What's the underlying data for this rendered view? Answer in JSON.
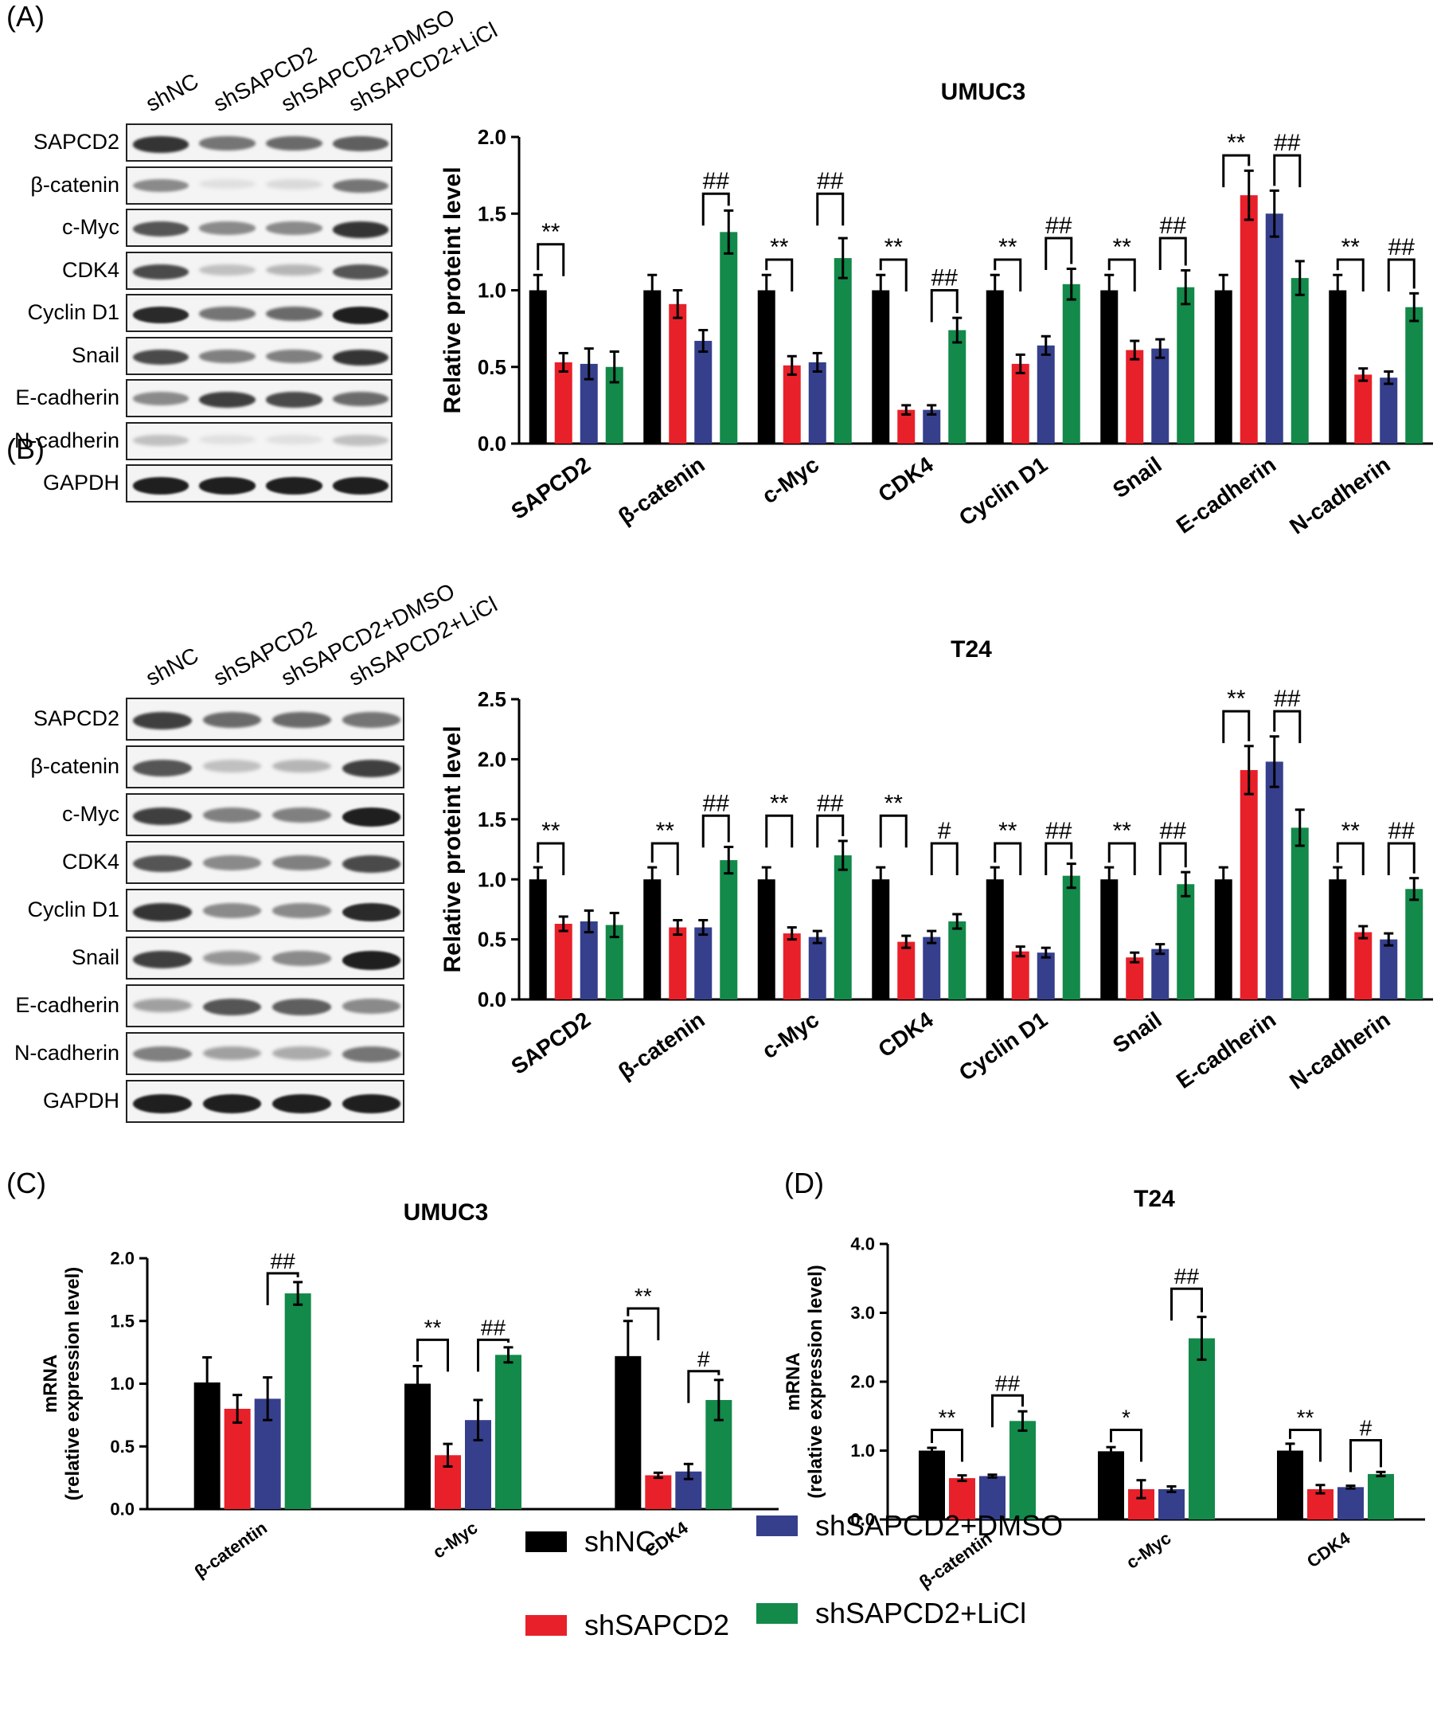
{
  "panels": {
    "A": "(A)",
    "B": "(B)",
    "C": "(C)",
    "D": "(D)"
  },
  "groups": [
    "shNC",
    "shSAPCD2",
    "shSAPCD2+DMSO",
    "shSAPCD2+LiCl"
  ],
  "colors": [
    "#000000",
    "#e8202a",
    "#353f8c",
    "#13894a"
  ],
  "blot_rows": [
    "SAPCD2",
    "β-catenin",
    "c-Myc",
    "CDK4",
    "Cyclin D1",
    "Snail",
    "E-cadherin",
    "N-cadherin",
    "GAPDH"
  ],
  "blotA_intensity": [
    [
      0.85,
      0.55,
      0.6,
      0.65
    ],
    [
      0.45,
      0.05,
      0.08,
      0.55
    ],
    [
      0.7,
      0.45,
      0.45,
      0.85
    ],
    [
      0.75,
      0.2,
      0.25,
      0.7
    ],
    [
      0.9,
      0.55,
      0.6,
      0.95
    ],
    [
      0.75,
      0.5,
      0.5,
      0.85
    ],
    [
      0.45,
      0.8,
      0.75,
      0.6
    ],
    [
      0.2,
      0.05,
      0.05,
      0.2
    ],
    [
      0.95,
      0.95,
      0.95,
      0.95
    ]
  ],
  "blotB_intensity": [
    [
      0.8,
      0.6,
      0.6,
      0.55
    ],
    [
      0.7,
      0.2,
      0.25,
      0.8
    ],
    [
      0.8,
      0.5,
      0.5,
      0.95
    ],
    [
      0.7,
      0.45,
      0.5,
      0.75
    ],
    [
      0.85,
      0.45,
      0.45,
      0.9
    ],
    [
      0.8,
      0.4,
      0.45,
      0.95
    ],
    [
      0.35,
      0.7,
      0.65,
      0.45
    ],
    [
      0.5,
      0.35,
      0.3,
      0.55
    ],
    [
      0.95,
      0.95,
      0.95,
      0.95
    ]
  ],
  "chart_data": [
    {
      "id": "A-bar",
      "type": "bar",
      "title": "UMUC3",
      "ylabel": "Relative proteint level",
      "ylim": [
        0,
        2.0
      ],
      "yticks": [
        "0.0",
        "0.5",
        "1.0",
        "1.5",
        "2.0"
      ],
      "categories": [
        "SAPCD2",
        "β-catenin",
        "c-Myc",
        "CDK4",
        "Cyclin D1",
        "Snail",
        "E-cadherin",
        "N-cadherin"
      ],
      "series": [
        {
          "name": "shNC",
          "values": [
            1.0,
            1.0,
            1.0,
            1.0,
            1.0,
            1.0,
            1.0,
            1.0
          ],
          "errors": [
            0.1,
            0.1,
            0.1,
            0.1,
            0.1,
            0.1,
            0.1,
            0.1
          ]
        },
        {
          "name": "shSAPCD2",
          "values": [
            0.53,
            0.91,
            0.51,
            0.22,
            0.52,
            0.61,
            1.62,
            0.45
          ],
          "errors": [
            0.06,
            0.09,
            0.06,
            0.03,
            0.06,
            0.06,
            0.16,
            0.04
          ]
        },
        {
          "name": "shSAPCD2+DMSO",
          "values": [
            0.52,
            0.67,
            0.53,
            0.22,
            0.64,
            0.62,
            1.5,
            0.43
          ],
          "errors": [
            0.1,
            0.07,
            0.06,
            0.03,
            0.06,
            0.06,
            0.15,
            0.04
          ]
        },
        {
          "name": "shSAPCD2+LiCl",
          "values": [
            0.5,
            1.38,
            1.21,
            0.74,
            1.04,
            1.02,
            1.08,
            0.89
          ],
          "errors": [
            0.1,
            0.14,
            0.13,
            0.08,
            0.1,
            0.11,
            0.11,
            0.09
          ]
        }
      ],
      "annotations": [
        {
          "text": "**",
          "category": 0,
          "from": 0,
          "to": 1,
          "level": 1.3
        },
        {
          "text": "##",
          "category": 1,
          "from": 2,
          "to": 3,
          "level": 1.63
        },
        {
          "text": "**",
          "category": 2,
          "from": 0,
          "to": 1,
          "level": 1.2
        },
        {
          "text": "##",
          "category": 2,
          "from": 2,
          "to": 3,
          "level": 1.63
        },
        {
          "text": "**",
          "category": 3,
          "from": 0,
          "to": 1,
          "level": 1.2
        },
        {
          "text": "##",
          "category": 3,
          "from": 2,
          "to": 3,
          "level": 1.0
        },
        {
          "text": "**",
          "category": 4,
          "from": 0,
          "to": 1,
          "level": 1.2
        },
        {
          "text": "##",
          "category": 4,
          "from": 2,
          "to": 3,
          "level": 1.34
        },
        {
          "text": "**",
          "category": 5,
          "from": 0,
          "to": 1,
          "level": 1.2
        },
        {
          "text": "##",
          "category": 5,
          "from": 2,
          "to": 3,
          "level": 1.34
        },
        {
          "text": "**",
          "category": 6,
          "from": 0,
          "to": 1,
          "level": 1.88
        },
        {
          "text": "##",
          "category": 6,
          "from": 2,
          "to": 3,
          "level": 1.88
        },
        {
          "text": "**",
          "category": 7,
          "from": 0,
          "to": 1,
          "level": 1.2
        },
        {
          "text": "##",
          "category": 7,
          "from": 2,
          "to": 3,
          "level": 1.2
        }
      ]
    },
    {
      "id": "B-bar",
      "type": "bar",
      "title": "T24",
      "ylabel": "Relative proteint level",
      "ylim": [
        0,
        2.5
      ],
      "yticks": [
        "0.0",
        "0.5",
        "1.0",
        "1.5",
        "2.0",
        "2.5"
      ],
      "categories": [
        "SAPCD2",
        "β-catenin",
        "c-Myc",
        "CDK4",
        "Cyclin D1",
        "Snail",
        "E-cadherin",
        "N-cadherin"
      ],
      "series": [
        {
          "name": "shNC",
          "values": [
            1.0,
            1.0,
            1.0,
            1.0,
            1.0,
            1.0,
            1.0,
            1.0
          ],
          "errors": [
            0.1,
            0.1,
            0.1,
            0.1,
            0.1,
            0.1,
            0.1,
            0.1
          ]
        },
        {
          "name": "shSAPCD2",
          "values": [
            0.63,
            0.6,
            0.55,
            0.48,
            0.4,
            0.35,
            1.91,
            0.56
          ],
          "errors": [
            0.06,
            0.06,
            0.05,
            0.05,
            0.04,
            0.04,
            0.2,
            0.05
          ]
        },
        {
          "name": "shSAPCD2+DMSO",
          "values": [
            0.65,
            0.6,
            0.52,
            0.52,
            0.39,
            0.42,
            1.98,
            0.5
          ],
          "errors": [
            0.09,
            0.06,
            0.05,
            0.05,
            0.04,
            0.04,
            0.21,
            0.05
          ]
        },
        {
          "name": "shSAPCD2+LiCl",
          "values": [
            0.62,
            1.16,
            1.2,
            0.65,
            1.03,
            0.96,
            1.43,
            0.92
          ],
          "errors": [
            0.1,
            0.11,
            0.12,
            0.06,
            0.1,
            0.1,
            0.15,
            0.09
          ]
        }
      ],
      "annotations": [
        {
          "text": "**",
          "category": 0,
          "from": 0,
          "to": 1,
          "level": 1.3
        },
        {
          "text": "**",
          "category": 1,
          "from": 0,
          "to": 1,
          "level": 1.3
        },
        {
          "text": "##",
          "category": 1,
          "from": 2,
          "to": 3,
          "level": 1.53
        },
        {
          "text": "**",
          "category": 2,
          "from": 0,
          "to": 1,
          "level": 1.53
        },
        {
          "text": "##",
          "category": 2,
          "from": 2,
          "to": 3,
          "level": 1.53
        },
        {
          "text": "**",
          "category": 3,
          "from": 0,
          "to": 1,
          "level": 1.53
        },
        {
          "text": "#",
          "category": 3,
          "from": 2,
          "to": 3,
          "level": 1.3
        },
        {
          "text": "**",
          "category": 4,
          "from": 0,
          "to": 1,
          "level": 1.3
        },
        {
          "text": "##",
          "category": 4,
          "from": 2,
          "to": 3,
          "level": 1.3
        },
        {
          "text": "**",
          "category": 5,
          "from": 0,
          "to": 1,
          "level": 1.3
        },
        {
          "text": "##",
          "category": 5,
          "from": 2,
          "to": 3,
          "level": 1.3
        },
        {
          "text": "**",
          "category": 6,
          "from": 0,
          "to": 1,
          "level": 2.4
        },
        {
          "text": "##",
          "category": 6,
          "from": 2,
          "to": 3,
          "level": 2.4
        },
        {
          "text": "**",
          "category": 7,
          "from": 0,
          "to": 1,
          "level": 1.3
        },
        {
          "text": "##",
          "category": 7,
          "from": 2,
          "to": 3,
          "level": 1.3
        }
      ]
    },
    {
      "id": "C-bar",
      "type": "bar",
      "title": "UMUC3",
      "ylabel": "mRNA\n(relative expression level)",
      "ylim": [
        0,
        2.0
      ],
      "yticks": [
        "0.0",
        "0.5",
        "1.0",
        "1.5",
        "2.0"
      ],
      "categories": [
        "β-catentin",
        "c-Myc",
        "CDK4"
      ],
      "series": [
        {
          "name": "shNC",
          "values": [
            1.01,
            1.0,
            1.22
          ],
          "errors": [
            0.2,
            0.14,
            0.28
          ]
        },
        {
          "name": "shSAPCD2",
          "values": [
            0.8,
            0.43,
            0.27
          ],
          "errors": [
            0.11,
            0.09,
            0.02
          ]
        },
        {
          "name": "shSAPCD2+DMSO",
          "values": [
            0.88,
            0.71,
            0.3
          ],
          "errors": [
            0.17,
            0.16,
            0.06
          ]
        },
        {
          "name": "shSAPCD2+LiCl",
          "values": [
            1.72,
            1.23,
            0.87
          ],
          "errors": [
            0.09,
            0.06,
            0.16
          ]
        }
      ],
      "annotations": [
        {
          "text": "##",
          "category": 0,
          "from": 2,
          "to": 3,
          "level": 1.88
        },
        {
          "text": "**",
          "category": 1,
          "from": 0,
          "to": 1,
          "level": 1.35
        },
        {
          "text": "##",
          "category": 1,
          "from": 2,
          "to": 3,
          "level": 1.35
        },
        {
          "text": "**",
          "category": 2,
          "from": 0,
          "to": 1,
          "level": 1.6
        },
        {
          "text": "#",
          "category": 2,
          "from": 2,
          "to": 3,
          "level": 1.1
        }
      ]
    },
    {
      "id": "D-bar",
      "type": "bar",
      "title": "T24",
      "ylabel": "mRNA\n(relative expression level)",
      "ylim": [
        0,
        4.0
      ],
      "yticks": [
        "0.0",
        "1.0",
        "2.0",
        "3.0",
        "4.0"
      ],
      "categories": [
        "β-catentin",
        "c-Myc",
        "CDK4"
      ],
      "series": [
        {
          "name": "shNC",
          "values": [
            1.0,
            0.99,
            1.0
          ],
          "errors": [
            0.04,
            0.06,
            0.1
          ]
        },
        {
          "name": "shSAPCD2",
          "values": [
            0.6,
            0.44,
            0.44
          ],
          "errors": [
            0.04,
            0.13,
            0.06
          ]
        },
        {
          "name": "shSAPCD2+DMSO",
          "values": [
            0.63,
            0.44,
            0.47
          ],
          "errors": [
            0.02,
            0.04,
            0.02
          ]
        },
        {
          "name": "shSAPCD2+LiCl",
          "values": [
            1.43,
            2.63,
            0.66
          ],
          "errors": [
            0.14,
            0.31,
            0.03
          ]
        }
      ],
      "annotations": [
        {
          "text": "**",
          "category": 0,
          "from": 0,
          "to": 1,
          "level": 1.3
        },
        {
          "text": "##",
          "category": 0,
          "from": 2,
          "to": 3,
          "level": 1.8
        },
        {
          "text": "*",
          "category": 1,
          "from": 0,
          "to": 1,
          "level": 1.3
        },
        {
          "text": "##",
          "category": 1,
          "from": 2,
          "to": 3,
          "level": 3.35
        },
        {
          "text": "**",
          "category": 2,
          "from": 0,
          "to": 1,
          "level": 1.3
        },
        {
          "text": "#",
          "category": 2,
          "from": 2,
          "to": 3,
          "level": 1.15
        }
      ]
    }
  ],
  "legend": {
    "items": [
      "shNC",
      "shSAPCD2",
      "shSAPCD2+DMSO",
      "shSAPCD2+LiCl"
    ]
  }
}
